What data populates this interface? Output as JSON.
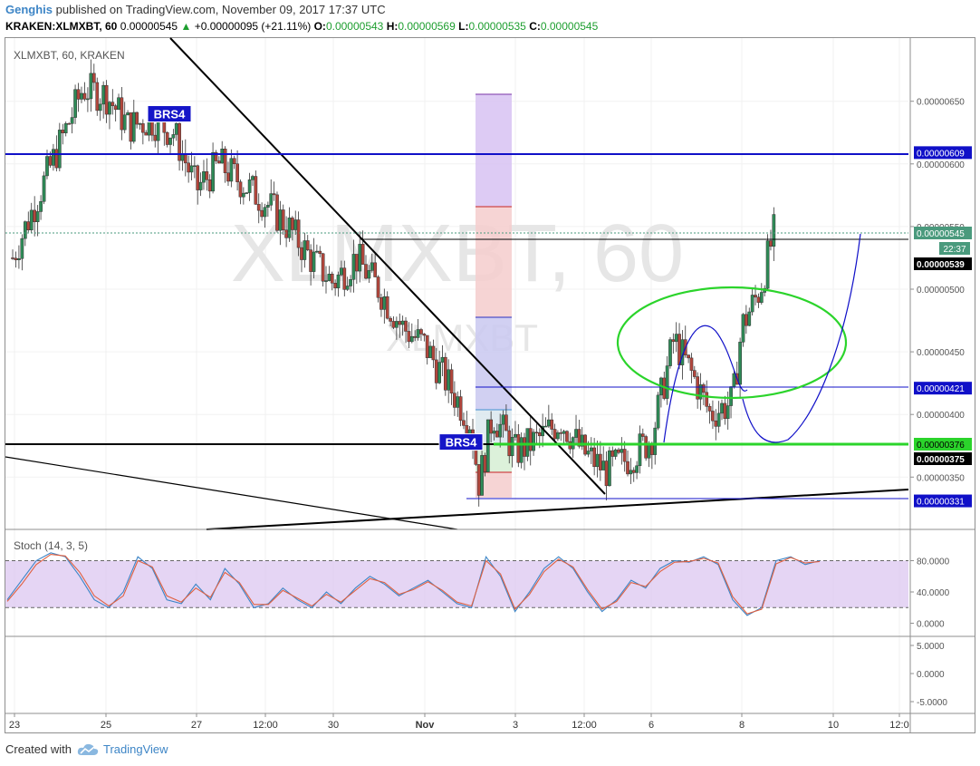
{
  "header": {
    "author": "Genghis",
    "published": "published on TradingView.com, November 09, 2017 17:37 UTC",
    "symbol": "KRAKEN:XLMXBT, 60",
    "last": "0.00000545",
    "change_icon": "triangle-up-icon",
    "change": "+0.00000095 (+21.11%)",
    "o_label": "O:",
    "o": "0.00000543",
    "h_label": "H:",
    "h": "0.00000569",
    "l_label": "L:",
    "l": "0.00000535",
    "c_label": "C:",
    "c": "0.00000545"
  },
  "chart_data": [
    {
      "type": "candlestick",
      "title": "XLMXBT, 60, KRAKEN",
      "watermark": "XLMXBT, 60",
      "watermark_small": "XLMXBT",
      "x_tick_labels": [
        "23",
        "25",
        "27",
        "12:00",
        "30",
        "Nov",
        "3",
        "12:00",
        "6",
        "8",
        "10",
        "12:0"
      ],
      "y_tick_labels": [
        "0.00000650",
        "0.00000600",
        "0.00000550",
        "0.00000500",
        "0.00000450",
        "0.00000400",
        "0.00000350"
      ],
      "ylim": [
        3.15e-06,
        6.9e-06
      ],
      "price_path": [
        {
          "day": 23.0,
          "price": 5.25e-06
        },
        {
          "day": 23.5,
          "price": 5.7e-06
        },
        {
          "day": 24.0,
          "price": 6.15e-06
        },
        {
          "day": 24.5,
          "price": 6.6e-06
        },
        {
          "day": 25.0,
          "price": 6.55e-06
        },
        {
          "day": 25.5,
          "price": 6.3e-06
        },
        {
          "day": 26.0,
          "price": 6.35e-06
        },
        {
          "day": 26.5,
          "price": 6.25e-06
        },
        {
          "day": 27.0,
          "price": 5.8e-06
        },
        {
          "day": 27.5,
          "price": 6e-06
        },
        {
          "day": 28.0,
          "price": 5.85e-06
        },
        {
          "day": 28.5,
          "price": 5.7e-06
        },
        {
          "day": 29.0,
          "price": 5.5e-06
        },
        {
          "day": 29.5,
          "price": 5.25e-06
        },
        {
          "day": 30.0,
          "price": 5.05e-06
        },
        {
          "day": 30.5,
          "price": 5.25e-06
        },
        {
          "day": 31.0,
          "price": 5e-06
        },
        {
          "day": 31.5,
          "price": 4.7e-06
        },
        {
          "day": 32.0,
          "price": 4.55e-06
        },
        {
          "day": 32.5,
          "price": 4.25e-06
        },
        {
          "day": 33.0,
          "price": 3.95e-06
        },
        {
          "day": 33.2,
          "price": 3.45e-06
        },
        {
          "day": 33.5,
          "price": 4e-06
        },
        {
          "day": 34.0,
          "price": 3.7e-06
        },
        {
          "day": 34.5,
          "price": 3.8e-06
        },
        {
          "day": 35.0,
          "price": 3.95e-06
        },
        {
          "day": 35.5,
          "price": 3.7e-06
        },
        {
          "day": 36.0,
          "price": 3.55e-06
        },
        {
          "day": 36.5,
          "price": 3.65e-06
        },
        {
          "day": 37.0,
          "price": 3.8e-06
        },
        {
          "day": 37.5,
          "price": 4.6e-06
        },
        {
          "day": 38.0,
          "price": 4.25e-06
        },
        {
          "day": 38.3,
          "price": 4e-06
        },
        {
          "day": 38.8,
          "price": 4.1e-06
        },
        {
          "day": 39.0,
          "price": 4.7e-06
        },
        {
          "day": 39.4,
          "price": 5e-06
        },
        {
          "day": 39.7,
          "price": 5.45e-06
        }
      ],
      "horizontal_levels": [
        {
          "label": "0.00000609",
          "value": 6.09e-06,
          "color": "#1010c8"
        },
        {
          "label": "0.00000545",
          "value": 5.45e-06,
          "color": "#4a9a7d"
        },
        {
          "label": "0.00000539",
          "value": 5.39e-06,
          "color": "#000000"
        },
        {
          "label": "0.00000421",
          "value": 4.21e-06,
          "color": "#1010c8"
        },
        {
          "label": "0.00000376",
          "value": 3.76e-06,
          "color": "#2bd42b"
        },
        {
          "label": "0.00000375",
          "value": 3.75e-06,
          "color": "#000000"
        },
        {
          "label": "0.00000331",
          "value": 3.31e-06,
          "color": "#1010c8"
        }
      ],
      "countdown": "22:37",
      "annotations": [
        {
          "text": "BRS4",
          "day": 26.4,
          "price": 6.4e-06
        },
        {
          "text": "BRS4",
          "day": 32.8,
          "price": 3.78e-06
        }
      ],
      "colors": {
        "up": "#2e8b57",
        "down": "#b2463c",
        "resistance": "#1010c8",
        "support": "#2bd42b",
        "ellipse": "#2bd42b"
      }
    },
    {
      "type": "line",
      "title": "Stoch (14, 3, 5)",
      "y_tick_labels": [
        "80.0000",
        "40.0000",
        "0.0000"
      ],
      "ylim": [
        -10,
        100
      ],
      "bands": [
        20,
        80
      ],
      "series": [
        {
          "color": "#3d85c6",
          "values": [
            30,
            55,
            80,
            90,
            85,
            60,
            30,
            20,
            40,
            85,
            70,
            30,
            25,
            50,
            30,
            70,
            50,
            20,
            25,
            45,
            30,
            20,
            40,
            25,
            45,
            60,
            50,
            35,
            45,
            55,
            40,
            25,
            20,
            85,
            60,
            15,
            40,
            70,
            85,
            70,
            40,
            15,
            30,
            55,
            45,
            70,
            80,
            78,
            85,
            75,
            30,
            10,
            20,
            80,
            85,
            75,
            80
          ]
        },
        {
          "color": "#e06040",
          "values": [
            28,
            50,
            75,
            88,
            86,
            65,
            35,
            22,
            35,
            80,
            72,
            35,
            27,
            45,
            33,
            65,
            52,
            24,
            24,
            42,
            32,
            22,
            37,
            27,
            42,
            57,
            52,
            37,
            43,
            53,
            42,
            27,
            22,
            80,
            63,
            18,
            37,
            66,
            82,
            72,
            43,
            18,
            28,
            52,
            47,
            66,
            78,
            79,
            83,
            77,
            34,
            12,
            18,
            76,
            84,
            77,
            79
          ]
        }
      ]
    },
    {
      "type": "line",
      "title": "",
      "y_tick_labels": [
        "5.0000",
        "0.0000",
        "-5.0000"
      ],
      "series": []
    }
  ],
  "footer": {
    "created_with": "Created with",
    "brand": "TradingView",
    "brand_icon": "tradingview-cloud-icon"
  }
}
